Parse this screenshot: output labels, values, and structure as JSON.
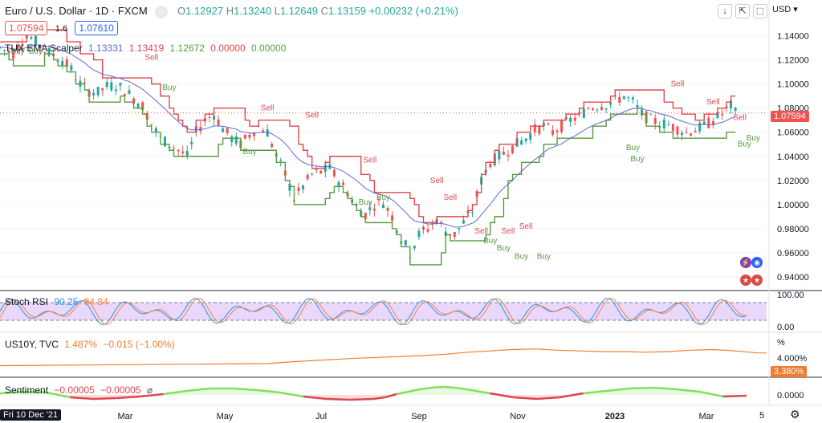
{
  "header": {
    "symbol": "Euro / U.S. Dollar · 1D · FXCM",
    "ohlc": [
      {
        "k": "O",
        "v": "1.12927"
      },
      {
        "k": "H",
        "v": "1.13240"
      },
      {
        "k": "L",
        "v": "1.12649"
      },
      {
        "k": "C",
        "v": "1.13159"
      }
    ],
    "change": "+0.00232 (+0.21%)",
    "bid": "1.07594",
    "spread": "1.6",
    "ask": "1.07610",
    "currency": "USD"
  },
  "indicator_legend": {
    "name": "TUX EMA Scalper",
    "values": [
      "1.13331",
      "1.13419",
      "1.12672",
      "0.00000",
      "0.00000"
    ]
  },
  "rsi_legend": {
    "name": "Stoch RSI",
    "k": "90.25",
    "d": "84.84"
  },
  "us10y_legend": {
    "name": "US10Y, TVC",
    "value": "1.487%",
    "change": "−0.015 (−1.00%)"
  },
  "sentiment_legend": {
    "name": "Sentiment",
    "v1": "−0.00005",
    "v2": "−0.00005"
  },
  "price_tag": "1.07594",
  "us10y_tag": "3.380%",
  "date_tag": "Fri 10 Dec '21",
  "scale_right_bottom": "5",
  "colors": {
    "up": "#26a69a",
    "down": "#ef5350",
    "upper_band": "#e0464e",
    "lower_band": "#5a9a3f",
    "ema": "#5e6ad2",
    "us10y": "#ef7d2f",
    "rsi_k": "#2196f3",
    "rsi_d": "#ff7f3f"
  },
  "chart_data": [
    {
      "type": "candlestick",
      "title": "",
      "x_ticks": [
        "Mar",
        "May",
        "Jul",
        "Sep",
        "Nov",
        "2023",
        "Mar"
      ],
      "y_ticks": [
        "1.14000",
        "1.12000",
        "1.10000",
        "1.08000",
        "1.06000",
        "1.04000",
        "1.02000",
        "1.00000",
        "0.98000",
        "0.96000",
        "0.94000"
      ],
      "ylim": [
        0.93,
        1.155
      ],
      "close_path": [
        [
          0,
          1.13
        ],
        [
          3,
          1.125
        ],
        [
          6,
          1.142
        ],
        [
          8,
          1.135
        ],
        [
          10,
          1.128
        ],
        [
          12,
          1.124
        ],
        [
          14,
          1.12
        ],
        [
          16,
          1.112
        ],
        [
          18,
          1.1
        ],
        [
          20,
          1.094
        ],
        [
          22,
          1.093
        ],
        [
          24,
          1.098
        ],
        [
          26,
          1.099
        ],
        [
          28,
          1.095
        ],
        [
          30,
          1.088
        ],
        [
          32,
          1.082
        ],
        [
          34,
          1.067
        ],
        [
          36,
          1.055
        ],
        [
          38,
          1.05
        ],
        [
          40,
          1.045
        ],
        [
          42,
          1.04
        ],
        [
          44,
          1.06
        ],
        [
          46,
          1.07
        ],
        [
          48,
          1.075
        ],
        [
          50,
          1.063
        ],
        [
          52,
          1.055
        ],
        [
          54,
          1.05
        ],
        [
          56,
          1.058
        ],
        [
          58,
          1.065
        ],
        [
          60,
          1.06
        ],
        [
          62,
          1.04
        ],
        [
          64,
          1.025
        ],
        [
          66,
          1.005
        ],
        [
          68,
          1.015
        ],
        [
          70,
          1.025
        ],
        [
          72,
          1.027
        ],
        [
          74,
          1.03
        ],
        [
          76,
          1.02
        ],
        [
          78,
          1.01
        ],
        [
          80,
          0.998
        ],
        [
          82,
          0.992
        ],
        [
          84,
          1.0
        ],
        [
          86,
          1.002
        ],
        [
          88,
          0.99
        ],
        [
          90,
          0.972
        ],
        [
          92,
          0.96
        ],
        [
          94,
          0.975
        ],
        [
          96,
          0.98
        ],
        [
          98,
          0.988
        ],
        [
          100,
          0.978
        ],
        [
          102,
          0.975
        ],
        [
          104,
          0.985
        ],
        [
          106,
          0.995
        ],
        [
          108,
          1.02
        ],
        [
          110,
          1.035
        ],
        [
          112,
          1.04
        ],
        [
          114,
          1.045
        ],
        [
          116,
          1.05
        ],
        [
          118,
          1.055
        ],
        [
          120,
          1.062
        ],
        [
          122,
          1.065
        ],
        [
          124,
          1.06
        ],
        [
          126,
          1.065
        ],
        [
          128,
          1.07
        ],
        [
          130,
          1.073
        ],
        [
          132,
          1.08
        ],
        [
          134,
          1.082
        ],
        [
          136,
          1.083
        ],
        [
          138,
          1.086
        ],
        [
          140,
          1.09
        ],
        [
          142,
          1.085
        ],
        [
          144,
          1.075
        ],
        [
          146,
          1.07
        ],
        [
          148,
          1.068
        ],
        [
          150,
          1.066
        ],
        [
          152,
          1.063
        ],
        [
          154,
          1.06
        ],
        [
          156,
          1.062
        ],
        [
          158,
          1.065
        ],
        [
          160,
          1.07
        ],
        [
          162,
          1.075
        ],
        [
          164,
          1.082
        ],
        [
          165,
          1.076
        ]
      ],
      "signals": [
        {
          "label": "Buy",
          "x": 4,
          "y": 1.125,
          "kind": "buy"
        },
        {
          "label": "Buy",
          "x": 8,
          "y": 1.125,
          "kind": "buy"
        },
        {
          "label": "Sell",
          "x": 34,
          "y": 1.12,
          "kind": "sell"
        },
        {
          "label": "Buy",
          "x": 38,
          "y": 1.095,
          "kind": "buy"
        },
        {
          "label": "Sell",
          "x": 60,
          "y": 1.078,
          "kind": "sell"
        },
        {
          "label": "Sell",
          "x": 70,
          "y": 1.072,
          "kind": "sell"
        },
        {
          "label": "Buy",
          "x": 56,
          "y": 1.042,
          "kind": "buy"
        },
        {
          "label": "Sell",
          "x": 83,
          "y": 1.035,
          "kind": "sell"
        },
        {
          "label": "Buy",
          "x": 82,
          "y": 1.0,
          "kind": "buy"
        },
        {
          "label": "Buy",
          "x": 86,
          "y": 1.004,
          "kind": "buy"
        },
        {
          "label": "Sell",
          "x": 98,
          "y": 1.018,
          "kind": "sell"
        },
        {
          "label": "Sell",
          "x": 101,
          "y": 1.004,
          "kind": "sell"
        },
        {
          "label": "Buy",
          "x": 110,
          "y": 0.968,
          "kind": "buy"
        },
        {
          "label": "Buy",
          "x": 113,
          "y": 0.962,
          "kind": "buy"
        },
        {
          "label": "Sell",
          "x": 108,
          "y": 0.976,
          "kind": "sell"
        },
        {
          "label": "Sell",
          "x": 114,
          "y": 0.976,
          "kind": "sell"
        },
        {
          "label": "Buy",
          "x": 117,
          "y": 0.955,
          "kind": "buy"
        },
        {
          "label": "Buy",
          "x": 122,
          "y": 0.955,
          "kind": "buy"
        },
        {
          "label": "Sell",
          "x": 118,
          "y": 0.98,
          "kind": "sell"
        },
        {
          "label": "Buy",
          "x": 142,
          "y": 1.045,
          "kind": "buy"
        },
        {
          "label": "Buy",
          "x": 143,
          "y": 1.036,
          "kind": "buy"
        },
        {
          "label": "Sell",
          "x": 152,
          "y": 1.098,
          "kind": "sell"
        },
        {
          "label": "Sell",
          "x": 160,
          "y": 1.083,
          "kind": "sell"
        },
        {
          "label": "Sell",
          "x": 166,
          "y": 1.07,
          "kind": "sell"
        },
        {
          "label": "Buy",
          "x": 167,
          "y": 1.048,
          "kind": "buy"
        },
        {
          "label": "Buy",
          "x": 169,
          "y": 1.053,
          "kind": "buy"
        }
      ]
    },
    {
      "type": "line",
      "title": "",
      "y_ticks": [
        "100.00",
        "0.00"
      ],
      "ylim": [
        -10,
        110
      ],
      "bands": [
        20,
        80
      ],
      "note": "Stoch RSI oscillator"
    },
    {
      "type": "line",
      "title": "",
      "y_ticks": [
        "%",
        "4.000%"
      ],
      "ylim": [
        0,
        6
      ],
      "x": [
        0,
        20,
        40,
        60,
        66,
        80,
        95,
        100,
        105,
        110,
        115,
        120,
        125,
        130,
        135,
        140,
        145,
        150,
        155,
        160,
        165,
        170,
        172
      ],
      "y": [
        1.5,
        1.6,
        1.7,
        1.8,
        2.1,
        2.6,
        3.0,
        3.2,
        3.5,
        3.7,
        3.9,
        4.0,
        3.8,
        3.7,
        3.6,
        3.6,
        3.5,
        3.6,
        3.8,
        3.9,
        3.7,
        3.4,
        3.38
      ]
    },
    {
      "type": "area",
      "title": "",
      "y_ticks": [
        "0.0000"
      ],
      "ylim": [
        -1,
        1
      ],
      "x": [
        0,
        10,
        20,
        30,
        40,
        50,
        60,
        70,
        80,
        90,
        100,
        110,
        120,
        130,
        140,
        150,
        160,
        165,
        170,
        175,
        180,
        185,
        190,
        195,
        200,
        210,
        220,
        230,
        240,
        250,
        260,
        270,
        280,
        290,
        300,
        310,
        320
      ],
      "y": [
        0.2,
        0.4,
        0.3,
        -0.3,
        -0.5,
        -0.4,
        -0.2,
        0.1,
        0.5,
        0.8,
        0.8,
        0.6,
        0.3,
        -0.2,
        -0.5,
        -0.6,
        -0.5,
        -0.3,
        0.1,
        0.4,
        0.7,
        0.9,
        1.0,
        0.9,
        0.7,
        0.2,
        -0.3,
        -0.5,
        -0.3,
        0.2,
        0.5,
        0.8,
        0.9,
        0.7,
        0.4,
        -0.2,
        -0.1
      ]
    }
  ]
}
